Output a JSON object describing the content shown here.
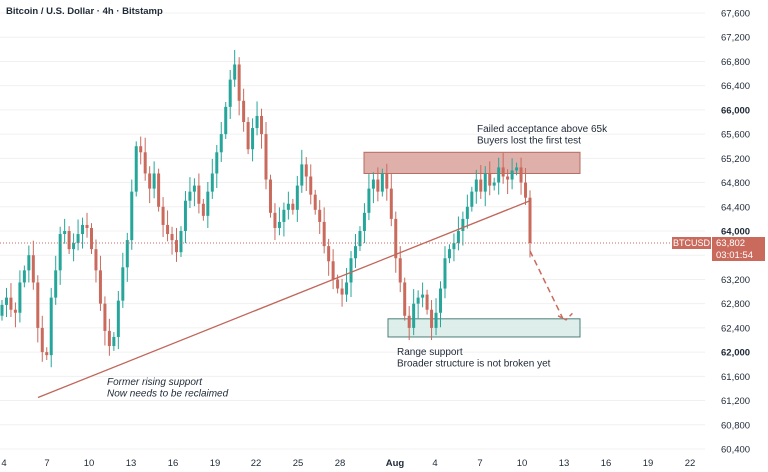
{
  "header": {
    "title": "Bitcoin / U.S. Dollar · 4h · Bitstamp"
  },
  "badges": {
    "symbol": "BTCUSD",
    "price": "63,802",
    "countdown": "03:01:54"
  },
  "annotations": {
    "resistance_note": [
      "Failed acceptance above 65k",
      "Buyers lost the first test"
    ],
    "support_note": [
      "Range support",
      "Broader structure is not broken yet"
    ],
    "trendline_note": [
      "Former rising support",
      "Now needs to be reclaimed"
    ]
  },
  "colors": {
    "up": "#26a69a",
    "down": "#c96a5d",
    "trend": "#c0665a",
    "resistance_fill": "#d9a29b",
    "support_fill": "#d8ebe7",
    "grid": "#f0f0f0",
    "text": "#1f2937"
  },
  "chart_data": {
    "type": "candlestick",
    "title": "Bitcoin / U.S. Dollar · 4h · Bitstamp",
    "y_axis": {
      "position": "right",
      "ticks": [
        "67,600",
        "67,200",
        "66,800",
        "66,400",
        "66,000",
        "65,600",
        "65,200",
        "64,800",
        "64,400",
        "64,000",
        "63,600",
        "63,200",
        "62,800",
        "62,400",
        "62,000",
        "61,600",
        "61,200",
        "60,800",
        "60,400"
      ],
      "bold_ticks": [
        "66,000",
        "64,000",
        "62,000"
      ],
      "range": [
        60400,
        67600
      ]
    },
    "x_axis": {
      "ticks": [
        "4",
        "7",
        "10",
        "13",
        "16",
        "19",
        "22",
        "25",
        "28",
        "Aug",
        "4",
        "7",
        "10",
        "13",
        "16",
        "19",
        "22"
      ],
      "bold_ticks": [
        "Aug"
      ]
    },
    "grid": true,
    "last_price": 63802,
    "countdown": "03:01:54",
    "series": [
      {
        "name": "BTCUSD",
        "values_close": [
          62780,
          62900,
          62700,
          62650,
          63150,
          63350,
          63600,
          63150,
          62400,
          62000,
          61950,
          62900,
          63350,
          63950,
          64000,
          63700,
          63800,
          63950,
          64100,
          64050,
          63700,
          63350,
          62800,
          62350,
          62100,
          62250,
          62850,
          63400,
          63850,
          64650,
          65400,
          65300,
          64950,
          64700,
          64950,
          64400,
          64100,
          63950,
          63850,
          63650,
          64000,
          64500,
          64650,
          64750,
          64450,
          64250,
          64650,
          64950,
          65300,
          65600,
          66050,
          66500,
          66750,
          66150,
          65800,
          65350,
          65700,
          65900,
          65600,
          64850,
          64300,
          64050,
          64150,
          64350,
          64450,
          64350,
          64750,
          65100,
          64900,
          64600,
          64350,
          64150,
          63750,
          63500,
          63200,
          63050,
          62950,
          63150,
          63550,
          63750,
          64000,
          64300,
          64700,
          64850,
          64650,
          64950,
          64700,
          64200,
          63550,
          63150,
          62600,
          62400,
          62800,
          62900,
          62950,
          62700,
          62400,
          62650,
          63050,
          63550,
          63700,
          63800,
          64000,
          64200,
          64400,
          64650,
          64850,
          64650,
          64950,
          64750,
          64800,
          65050,
          64900,
          64850,
          65000,
          65050,
          64800,
          64550,
          63802
        ]
      }
    ],
    "drawings": {
      "resistance_zone": {
        "from_price": 64950,
        "to_price": 65300
      },
      "support_zone": {
        "from_price": 62250,
        "to_price": 62550
      },
      "trendline": {
        "from_price": 61250,
        "to_price": 64500
      },
      "projection_target": 62550
    }
  }
}
